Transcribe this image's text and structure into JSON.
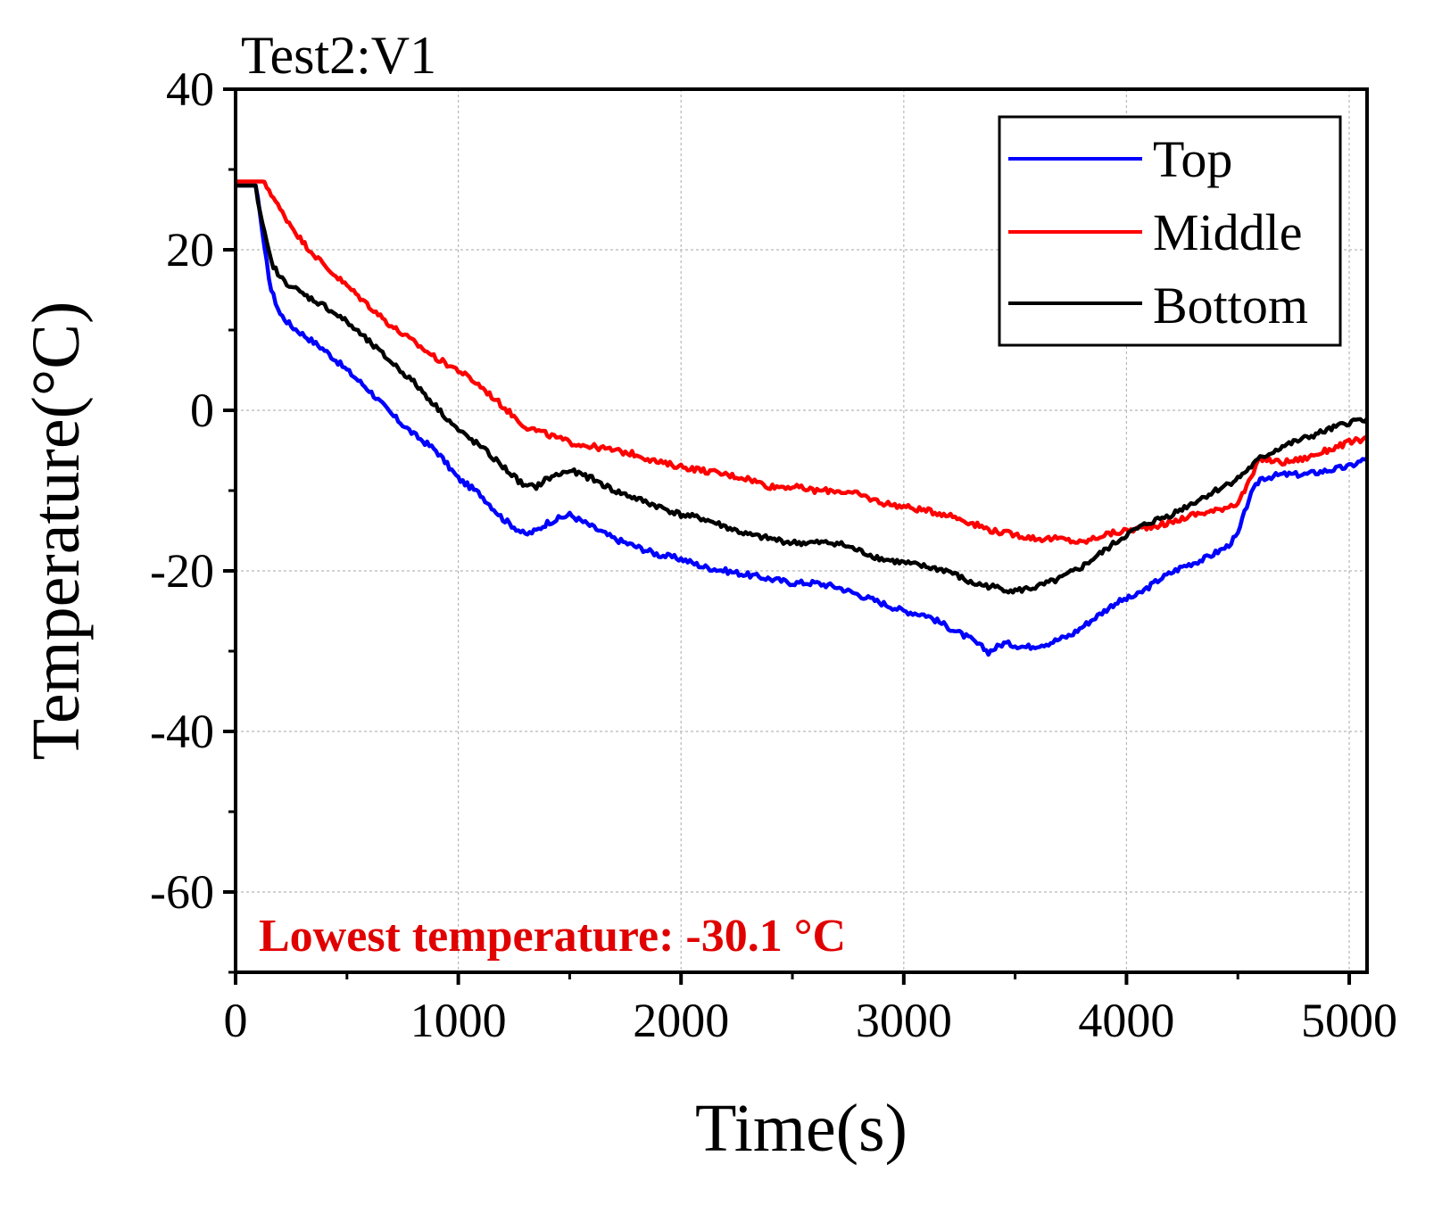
{
  "chart_data": {
    "type": "line",
    "title": "Test2:V1",
    "xlabel": "Time(s)",
    "ylabel": "Temperature(°C)",
    "xlim": [
      0,
      5080
    ],
    "ylim": [
      -70,
      40
    ],
    "xticks": [
      0,
      1000,
      2000,
      3000,
      4000,
      5000
    ],
    "xtick_labels": [
      "0",
      "1000",
      "2000",
      "3000",
      "4000",
      "5000"
    ],
    "yticks": [
      40,
      20,
      0,
      -20,
      -40,
      -60
    ],
    "ytick_labels": [
      "40",
      "20",
      "0",
      "-20",
      "-40",
      "-60"
    ],
    "grid": true,
    "legend_position": "top-right",
    "annotation": "Lowest temperature: -30.1 °C",
    "annotation_color": "#e00000",
    "series": [
      {
        "name": "Top",
        "color": "#0000ff",
        "x": [
          0,
          90,
          100,
          130,
          160,
          200,
          250,
          300,
          400,
          500,
          600,
          700,
          800,
          900,
          1000,
          1100,
          1200,
          1300,
          1350,
          1400,
          1500,
          1600,
          1700,
          1800,
          1900,
          2000,
          2100,
          2200,
          2300,
          2400,
          2500,
          2600,
          2700,
          2800,
          2900,
          3000,
          3100,
          3200,
          3300,
          3380,
          3450,
          3550,
          3650,
          3750,
          3850,
          3950,
          4050,
          4150,
          4250,
          4350,
          4450,
          4500,
          4550,
          4600,
          4700,
          4800,
          4900,
          5000,
          5080
        ],
        "y": [
          28.0,
          28.0,
          26.5,
          20.0,
          15.0,
          12.0,
          10.5,
          9.5,
          7.5,
          5.0,
          2.5,
          -0.5,
          -3.0,
          -5.0,
          -8.5,
          -10.5,
          -13.5,
          -15.5,
          -15.0,
          -14.0,
          -13.0,
          -14.5,
          -16.0,
          -17.0,
          -18.0,
          -18.5,
          -19.5,
          -20.0,
          -20.5,
          -21.0,
          -21.5,
          -21.5,
          -22.0,
          -23.0,
          -24.0,
          -25.0,
          -25.5,
          -27.0,
          -28.5,
          -30.1,
          -29.0,
          -29.5,
          -29.0,
          -28.0,
          -26.0,
          -24.0,
          -23.0,
          -21.0,
          -19.5,
          -18.5,
          -17.0,
          -15.5,
          -11.0,
          -8.5,
          -8.0,
          -8.0,
          -7.5,
          -7.0,
          -6.0
        ]
      },
      {
        "name": "Middle",
        "color": "#ff0000",
        "x": [
          0,
          120,
          150,
          200,
          300,
          400,
          500,
          600,
          700,
          800,
          900,
          1000,
          1100,
          1200,
          1300,
          1400,
          1500,
          1600,
          1700,
          1800,
          1900,
          2000,
          2100,
          2200,
          2300,
          2400,
          2500,
          2600,
          2700,
          2800,
          2900,
          3000,
          3100,
          3200,
          3300,
          3400,
          3500,
          3600,
          3700,
          3800,
          3900,
          4000,
          4100,
          4200,
          4300,
          4400,
          4500,
          4550,
          4600,
          4700,
          4800,
          4900,
          5000,
          5080
        ],
        "y": [
          28.5,
          28.5,
          27.5,
          25.0,
          21.0,
          18.0,
          15.5,
          13.0,
          10.5,
          8.5,
          6.5,
          5.0,
          3.0,
          0.5,
          -2.0,
          -3.0,
          -4.0,
          -4.5,
          -5.0,
          -5.5,
          -6.5,
          -7.0,
          -7.5,
          -8.0,
          -8.5,
          -9.5,
          -9.5,
          -10.0,
          -10.0,
          -10.5,
          -11.5,
          -12.0,
          -12.5,
          -13.0,
          -14.0,
          -15.0,
          -15.5,
          -16.0,
          -16.0,
          -16.5,
          -15.5,
          -15.0,
          -14.5,
          -14.0,
          -13.0,
          -12.5,
          -11.5,
          -9.0,
          -6.0,
          -6.5,
          -6.0,
          -5.0,
          -4.0,
          -3.5
        ]
      },
      {
        "name": "Bottom",
        "color": "#000000",
        "x": [
          0,
          90,
          100,
          130,
          160,
          200,
          250,
          300,
          400,
          500,
          600,
          700,
          800,
          900,
          1000,
          1100,
          1200,
          1300,
          1350,
          1400,
          1500,
          1600,
          1700,
          1800,
          1900,
          2000,
          2100,
          2200,
          2300,
          2400,
          2500,
          2600,
          2700,
          2800,
          2900,
          3000,
          3100,
          3200,
          3300,
          3400,
          3500,
          3600,
          3700,
          3800,
          3900,
          4000,
          4100,
          4200,
          4300,
          4400,
          4500,
          4600,
          4700,
          4800,
          4900,
          5000,
          5080
        ],
        "y": [
          28.0,
          28.0,
          26.0,
          22.0,
          18.5,
          16.5,
          15.5,
          14.5,
          13.0,
          11.0,
          8.5,
          6.0,
          3.5,
          0.5,
          -2.5,
          -4.5,
          -7.0,
          -9.5,
          -9.5,
          -8.5,
          -7.5,
          -8.5,
          -10.0,
          -11.0,
          -12.0,
          -13.0,
          -13.5,
          -14.5,
          -15.5,
          -16.0,
          -16.5,
          -16.5,
          -16.5,
          -17.5,
          -18.5,
          -19.0,
          -19.5,
          -20.0,
          -21.5,
          -22.0,
          -22.5,
          -22.0,
          -21.0,
          -19.5,
          -17.5,
          -15.5,
          -14.0,
          -13.0,
          -11.5,
          -10.0,
          -8.5,
          -6.0,
          -4.5,
          -3.5,
          -2.5,
          -1.5,
          -1.0
        ]
      }
    ]
  }
}
